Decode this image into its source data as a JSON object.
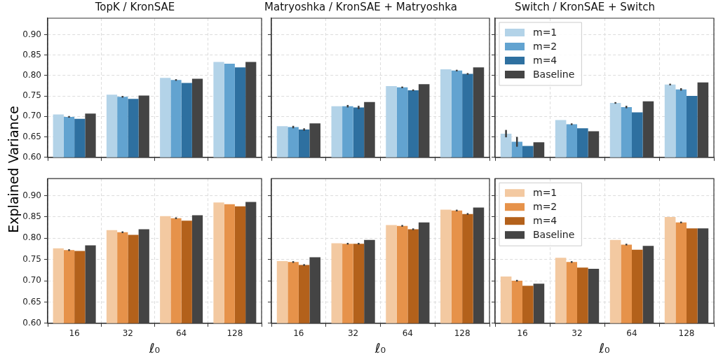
{
  "chart_data": [
    {
      "type": "bar",
      "title": "TopK / KronSAE",
      "ylabel": "Explained Variance",
      "categories": [
        "16",
        "32",
        "64",
        "128"
      ],
      "ylim": [
        0.6,
        0.94
      ],
      "yticks": [
        {
          "value": 0.6,
          "label": "0.60"
        },
        {
          "value": 0.65,
          "label": "0.65"
        },
        {
          "value": 0.7,
          "label": "0.70"
        },
        {
          "value": 0.75,
          "label": "0.75"
        },
        {
          "value": 0.8,
          "label": "0.80"
        },
        {
          "value": 0.85,
          "label": "0.85"
        },
        {
          "value": 0.9,
          "label": "0.90"
        }
      ],
      "grid": true,
      "tick_labels": "y",
      "series": [
        {
          "color": "#b3d3e8",
          "values": [
            0.705,
            0.753,
            0.794,
            0.833
          ]
        },
        {
          "color": "#62a3d0",
          "values": [
            0.699,
            0.748,
            0.789,
            0.829
          ],
          "errors": [
            0.002,
            0.002,
            0.002,
            null
          ]
        },
        {
          "color": "#2e70a0",
          "values": [
            0.694,
            0.743,
            0.782,
            0.82
          ]
        },
        {
          "color": "#444444",
          "values": [
            0.707,
            0.751,
            0.792,
            0.833
          ]
        }
      ]
    },
    {
      "type": "bar",
      "title": "Matryoshka / KronSAE + Matryoshka",
      "categories": [
        "16",
        "32",
        "64",
        "128"
      ],
      "ylim": [
        0.6,
        0.94
      ],
      "yticks": [
        {
          "value": 0.6,
          "label": null
        },
        {
          "value": 0.65,
          "label": null
        },
        {
          "value": 0.7,
          "label": null
        },
        {
          "value": 0.75,
          "label": null
        },
        {
          "value": 0.8,
          "label": null
        },
        {
          "value": 0.85,
          "label": null
        },
        {
          "value": 0.9,
          "label": null
        }
      ],
      "grid": true,
      "tick_labels": false,
      "series": [
        {
          "color": "#b3d3e8",
          "values": [
            0.676,
            0.725,
            0.774,
            0.815
          ]
        },
        {
          "color": "#62a3d0",
          "values": [
            0.674,
            0.725,
            0.771,
            0.812
          ],
          "errors": [
            0.003,
            0.003,
            0.002,
            0.002
          ]
        },
        {
          "color": "#2e70a0",
          "values": [
            0.668,
            0.722,
            0.764,
            0.804
          ],
          "errors": [
            0.003,
            0.004,
            0.002,
            0.002
          ]
        },
        {
          "color": "#444444",
          "values": [
            0.683,
            0.735,
            0.779,
            0.82
          ]
        }
      ]
    },
    {
      "type": "bar",
      "title": "Switch / KronSAE + Switch",
      "categories": [
        "16",
        "32",
        "64",
        "128"
      ],
      "ylim": [
        0.6,
        0.94
      ],
      "yticks": [
        {
          "value": 0.6,
          "label": null
        },
        {
          "value": 0.65,
          "label": null
        },
        {
          "value": 0.7,
          "label": null
        },
        {
          "value": 0.75,
          "label": null
        },
        {
          "value": 0.8,
          "label": null
        },
        {
          "value": 0.85,
          "label": null
        },
        {
          "value": 0.9,
          "label": null
        }
      ],
      "grid": true,
      "tick_labels": false,
      "legend": "top left",
      "series": [
        {
          "name": "m=1",
          "color": "#b3d3e8",
          "values": [
            0.658,
            0.691,
            0.733,
            0.778
          ],
          "errors": [
            0.009,
            null,
            0.002,
            0.002
          ]
        },
        {
          "name": "m=2",
          "color": "#62a3d0",
          "values": [
            0.638,
            0.681,
            0.723,
            0.766
          ],
          "errors": [
            0.012,
            0.002,
            0.003,
            0.003
          ]
        },
        {
          "name": "m=4",
          "color": "#2e70a0",
          "values": [
            0.628,
            0.671,
            0.71,
            0.75
          ]
        },
        {
          "name": "Baseline",
          "color": "#444444",
          "values": [
            0.637,
            0.664,
            0.737,
            0.783
          ]
        }
      ]
    },
    {
      "type": "bar",
      "xlabel": "ℓ₀",
      "categories": [
        "16",
        "32",
        "64",
        "128"
      ],
      "ylim": [
        0.6,
        0.94
      ],
      "yticks": [
        {
          "value": 0.6,
          "label": "0.60"
        },
        {
          "value": 0.65,
          "label": "0.65"
        },
        {
          "value": 0.7,
          "label": "0.70"
        },
        {
          "value": 0.75,
          "label": "0.75"
        },
        {
          "value": 0.8,
          "label": "0.80"
        },
        {
          "value": 0.85,
          "label": "0.85"
        },
        {
          "value": 0.9,
          "label": "0.90"
        }
      ],
      "grid": true,
      "series": [
        {
          "color": "#f3c9a1",
          "values": [
            0.776,
            0.819,
            0.852,
            0.884
          ]
        },
        {
          "color": "#e6924a",
          "values": [
            0.772,
            0.814,
            0.847,
            0.88
          ],
          "errors": [
            0.002,
            0.002,
            0.002,
            null
          ]
        },
        {
          "color": "#b3611b",
          "values": [
            0.77,
            0.808,
            0.841,
            0.875
          ]
        },
        {
          "color": "#444444",
          "values": [
            0.783,
            0.821,
            0.854,
            0.885
          ]
        }
      ]
    },
    {
      "type": "bar",
      "xlabel": "ℓ₀",
      "categories": [
        "16",
        "32",
        "64",
        "128"
      ],
      "ylim": [
        0.6,
        0.94
      ],
      "yticks": [
        {
          "value": 0.6,
          "label": null
        },
        {
          "value": 0.65,
          "label": null
        },
        {
          "value": 0.7,
          "label": null
        },
        {
          "value": 0.75,
          "label": null
        },
        {
          "value": 0.8,
          "label": null
        },
        {
          "value": 0.85,
          "label": null
        },
        {
          "value": 0.9,
          "label": null
        }
      ],
      "grid": true,
      "tick_labels": "x",
      "series": [
        {
          "color": "#f3c9a1",
          "values": [
            0.746,
            0.788,
            0.831,
            0.867
          ]
        },
        {
          "color": "#e6924a",
          "values": [
            0.744,
            0.787,
            0.829,
            0.865
          ],
          "errors": [
            0.002,
            0.002,
            0.002,
            0.002
          ]
        },
        {
          "color": "#b3611b",
          "values": [
            0.737,
            0.787,
            0.821,
            0.857
          ],
          "errors": [
            0.002,
            0.002,
            0.002,
            0.002
          ]
        },
        {
          "color": "#444444",
          "values": [
            0.755,
            0.796,
            0.837,
            0.872
          ]
        }
      ]
    },
    {
      "type": "bar",
      "xlabel": "ℓ₀",
      "categories": [
        "16",
        "32",
        "64",
        "128"
      ],
      "ylim": [
        0.6,
        0.94
      ],
      "yticks": [
        {
          "value": 0.6,
          "label": null
        },
        {
          "value": 0.65,
          "label": null
        },
        {
          "value": 0.7,
          "label": null
        },
        {
          "value": 0.75,
          "label": null
        },
        {
          "value": 0.8,
          "label": null
        },
        {
          "value": 0.85,
          "label": null
        },
        {
          "value": 0.9,
          "label": null
        }
      ],
      "grid": true,
      "tick_labels": "x",
      "legend": "top left",
      "series": [
        {
          "name": "m=1",
          "color": "#f3c9a1",
          "values": [
            0.71,
            0.754,
            0.796,
            0.85
          ]
        },
        {
          "name": "m=2",
          "color": "#e6924a",
          "values": [
            0.7,
            0.744,
            0.785,
            0.837
          ],
          "errors": [
            0.002,
            0.002,
            0.002,
            0.002
          ]
        },
        {
          "name": "m=4",
          "color": "#b3611b",
          "values": [
            0.688,
            0.731,
            0.773,
            0.823
          ]
        },
        {
          "name": "Baseline",
          "color": "#444444",
          "values": [
            0.693,
            0.728,
            0.782,
            0.823
          ]
        }
      ]
    }
  ]
}
